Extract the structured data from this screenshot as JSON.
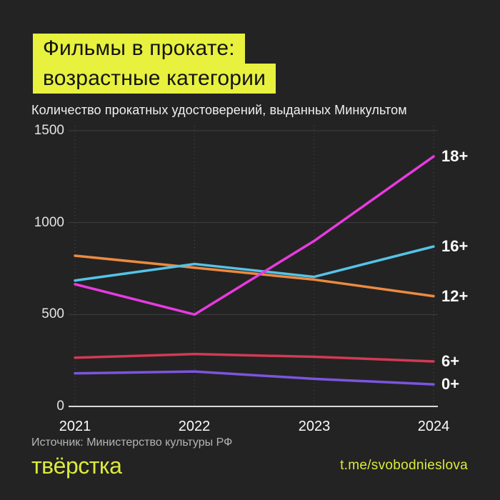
{
  "header": {
    "title_line1": "Фильмы в прокате:",
    "title_line2": "возрастные категории",
    "subtitle": "Количество прокатных удостоверений, выданных Минкультом"
  },
  "chart_data": {
    "type": "line",
    "title": "Количество прокатных удостоверений, выданных Минкультом",
    "xlabel": "",
    "ylabel": "",
    "categories": [
      "2021",
      "2022",
      "2023",
      "2024"
    ],
    "yticks": [
      "1500",
      "1000",
      "500",
      "0"
    ],
    "ytick_values": [
      1500,
      1000,
      500,
      0
    ],
    "ylim": [
      0,
      1500
    ],
    "grid": true,
    "legend_position": "right-at-line-ends",
    "series": [
      {
        "name": "18+",
        "color": "#e83ae0",
        "values": [
          665,
          500,
          900,
          1360
        ]
      },
      {
        "name": "16+",
        "color": "#55c3e8",
        "values": [
          685,
          775,
          705,
          870
        ]
      },
      {
        "name": "12+",
        "color": "#ed8a40",
        "values": [
          820,
          755,
          690,
          600
        ]
      },
      {
        "name": "6+",
        "color": "#d23a55",
        "values": [
          265,
          285,
          270,
          245
        ]
      },
      {
        "name": "0+",
        "color": "#7b55df",
        "values": [
          180,
          190,
          150,
          120
        ]
      }
    ]
  },
  "footer": {
    "source": "Источник: Министерство культуры РФ",
    "logo": "твёрстка",
    "link": "t.me/svobodnieslova"
  },
  "colors": {
    "background": "#232323",
    "accent_yellow": "#e7f13e",
    "footer_yellow": "#dcea3c",
    "gridline": "#3f3f3f",
    "axis_line": "#d9d9d9",
    "dotted_gridline": "#4f4f4f"
  }
}
